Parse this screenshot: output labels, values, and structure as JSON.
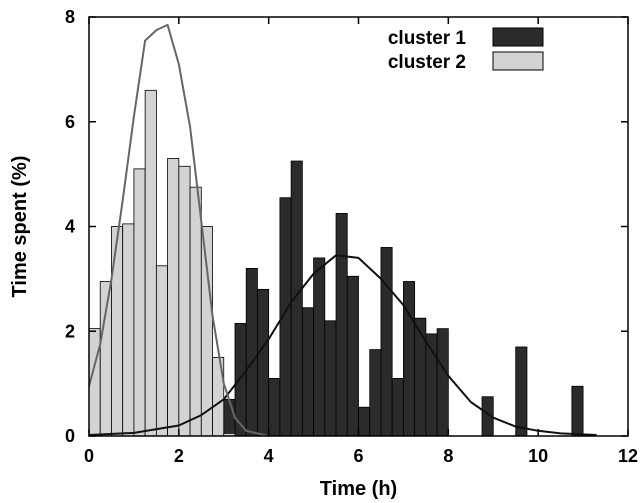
{
  "chart_data": {
    "type": "bar",
    "xlabel": "Time (h)",
    "ylabel": "Time spent (%)",
    "xlim": [
      0,
      12
    ],
    "ylim": [
      0,
      8
    ],
    "xticks": [
      0,
      2,
      4,
      6,
      8,
      10,
      12
    ],
    "yticks": [
      0,
      2,
      4,
      6,
      8
    ],
    "bin_width": 0.25,
    "grid": false,
    "legend_position": "top-right",
    "series": [
      {
        "name": "cluster 1",
        "color": "#2b2b2b",
        "bins": [
          [
            3.0,
            0.7
          ],
          [
            3.25,
            2.15
          ],
          [
            3.5,
            3.2
          ],
          [
            3.75,
            2.8
          ],
          [
            4.0,
            1.1
          ],
          [
            4.25,
            4.55
          ],
          [
            4.5,
            5.25
          ],
          [
            4.75,
            2.45
          ],
          [
            5.0,
            3.4
          ],
          [
            5.25,
            2.2
          ],
          [
            5.5,
            4.25
          ],
          [
            5.75,
            3.05
          ],
          [
            6.0,
            0.55
          ],
          [
            6.25,
            1.65
          ],
          [
            6.5,
            3.6
          ],
          [
            6.75,
            1.1
          ],
          [
            7.0,
            2.95
          ],
          [
            7.25,
            2.25
          ],
          [
            7.5,
            1.95
          ],
          [
            7.75,
            2.05
          ],
          [
            8.75,
            0.75
          ],
          [
            9.5,
            1.7
          ],
          [
            10.75,
            0.95
          ]
        ],
        "fit_curve": [
          [
            0.0,
            0.02
          ],
          [
            1.0,
            0.06
          ],
          [
            2.0,
            0.2
          ],
          [
            2.5,
            0.4
          ],
          [
            3.0,
            0.7
          ],
          [
            3.5,
            1.25
          ],
          [
            4.0,
            1.85
          ],
          [
            4.5,
            2.55
          ],
          [
            5.0,
            3.1
          ],
          [
            5.5,
            3.45
          ],
          [
            6.0,
            3.4
          ],
          [
            6.5,
            3.0
          ],
          [
            7.0,
            2.5
          ],
          [
            7.5,
            1.8
          ],
          [
            8.0,
            1.15
          ],
          [
            8.5,
            0.65
          ],
          [
            9.0,
            0.35
          ],
          [
            9.5,
            0.18
          ],
          [
            10.0,
            0.1
          ],
          [
            10.5,
            0.05
          ],
          [
            11.0,
            0.03
          ],
          [
            11.3,
            0.02
          ]
        ]
      },
      {
        "name": "cluster 2",
        "color": "#d3d3d3",
        "bins": [
          [
            0.0,
            2.05
          ],
          [
            0.25,
            2.95
          ],
          [
            0.5,
            4.0
          ],
          [
            0.75,
            4.05
          ],
          [
            1.0,
            5.1
          ],
          [
            1.25,
            6.6
          ],
          [
            1.5,
            3.25
          ],
          [
            1.75,
            5.3
          ],
          [
            2.0,
            5.15
          ],
          [
            2.25,
            4.75
          ],
          [
            2.5,
            4.0
          ],
          [
            2.75,
            1.5
          ],
          [
            3.0,
            0.05
          ]
        ],
        "fit_curve": [
          [
            0.0,
            0.95
          ],
          [
            0.25,
            1.75
          ],
          [
            0.5,
            3.0
          ],
          [
            0.75,
            4.5
          ],
          [
            1.0,
            6.1
          ],
          [
            1.25,
            7.55
          ],
          [
            1.5,
            7.75
          ],
          [
            1.75,
            7.85
          ],
          [
            2.0,
            7.1
          ],
          [
            2.25,
            5.9
          ],
          [
            2.5,
            4.1
          ],
          [
            2.75,
            2.3
          ],
          [
            3.0,
            1.0
          ],
          [
            3.25,
            0.35
          ],
          [
            3.5,
            0.1
          ],
          [
            4.0,
            0.0
          ]
        ]
      }
    ]
  }
}
